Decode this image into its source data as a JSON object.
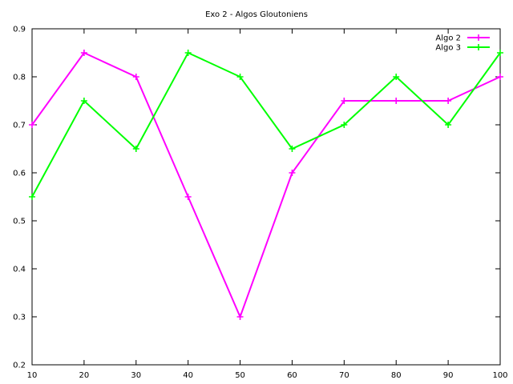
{
  "chart_data": {
    "type": "line",
    "title": "Exo 2 - Algos Gloutoniens",
    "xlabel": "",
    "ylabel": "",
    "x": [
      10,
      20,
      30,
      40,
      50,
      60,
      70,
      80,
      90,
      100
    ],
    "xlim": [
      10,
      100
    ],
    "ylim": [
      0.2,
      0.9
    ],
    "xticks": [
      10,
      20,
      30,
      40,
      50,
      60,
      70,
      80,
      90,
      100
    ],
    "yticks": [
      0.2,
      0.3,
      0.4,
      0.5,
      0.6,
      0.7,
      0.8,
      0.9
    ],
    "grid": false,
    "legend_position": "top-right",
    "series": [
      {
        "name": "Algo 2",
        "color": "#ff00ff",
        "marker": "plus",
        "values": [
          0.7,
          0.85,
          0.8,
          0.55,
          0.3,
          0.6,
          0.75,
          0.75,
          0.75,
          0.8
        ]
      },
      {
        "name": "Algo 3",
        "color": "#00ff00",
        "marker": "plus",
        "values": [
          0.55,
          0.75,
          0.65,
          0.85,
          0.8,
          0.65,
          0.7,
          0.8,
          0.7,
          0.85
        ]
      }
    ]
  }
}
